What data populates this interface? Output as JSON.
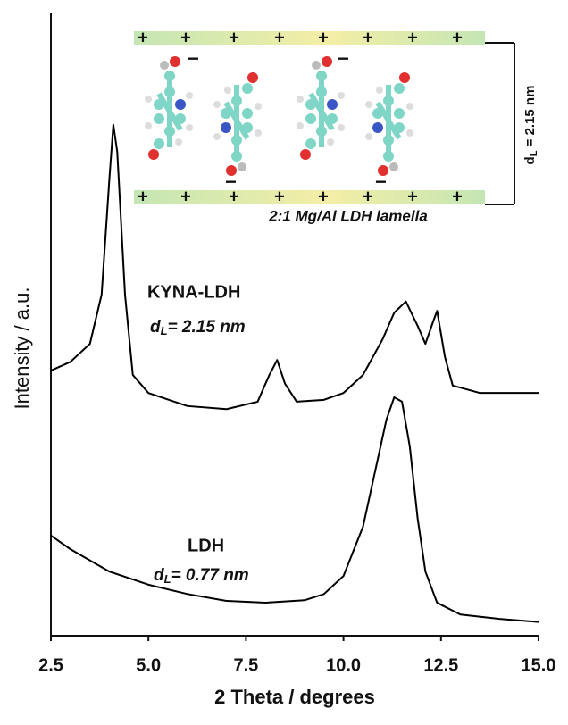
{
  "chart_data": {
    "type": "line",
    "xlabel": "2 Theta / degrees",
    "ylabel": "Intensity / a.u.",
    "xlim": [
      2.5,
      15.0
    ],
    "ylim": [
      0,
      100
    ],
    "xticks": [
      2.5,
      {
        "value": 5,
        "label": "5.0"
      },
      7.5,
      {
        "value": 10,
        "label": "10.0"
      },
      12.5,
      {
        "value": 15,
        "label": "15.0"
      }
    ],
    "series": [
      {
        "name": "KYNA-LDH",
        "color": "#000000",
        "x": [
          2.5,
          3.0,
          3.5,
          3.8,
          4.0,
          4.1,
          4.2,
          4.4,
          4.6,
          5.0,
          6.0,
          7.0,
          7.8,
          8.1,
          8.3,
          8.5,
          8.8,
          9.5,
          10.0,
          10.5,
          11.0,
          11.3,
          11.6,
          11.9,
          12.1,
          12.3,
          12.4,
          12.6,
          12.8,
          13.5,
          14.5,
          15.0
        ],
        "values": [
          42.6,
          44.0,
          46.9,
          54.8,
          73.5,
          82.1,
          77.8,
          54.8,
          41.9,
          39.0,
          36.9,
          36.4,
          37.6,
          41.9,
          44.3,
          40.5,
          37.6,
          37.9,
          39.0,
          41.9,
          47.6,
          51.9,
          53.7,
          49.8,
          46.9,
          50.5,
          52.2,
          44.8,
          40.2,
          39.0,
          39.0,
          39.0
        ]
      },
      {
        "name": "LDH",
        "color": "#000000",
        "x": [
          2.5,
          3.0,
          4.0,
          5.0,
          6.0,
          7.0,
          8.0,
          9.0,
          9.5,
          10.0,
          10.5,
          10.8,
          11.1,
          11.3,
          11.5,
          11.7,
          11.9,
          12.1,
          12.4,
          13.0,
          14.0,
          15.0
        ],
        "values": [
          16.1,
          13.9,
          10.3,
          8.2,
          6.7,
          5.6,
          5.3,
          5.7,
          6.7,
          9.6,
          17.5,
          26.1,
          34.7,
          38.3,
          37.6,
          30.4,
          18.9,
          10.3,
          5.3,
          3.4,
          2.7,
          2.2
        ]
      }
    ],
    "annotations": [
      {
        "symbol": "d",
        "subscript": "L",
        "text": "= 2.15 nm"
      },
      {
        "symbol": "d",
        "subscript": "L",
        "text": "= 0.77 nm"
      }
    ],
    "inset": {
      "plus_sign": "+",
      "minus_sign": "−",
      "caption": "2:1 Mg/Al LDH lamella",
      "spacing_symbol": "d",
      "spacing_subscript": "L",
      "spacing_text": " = 2.15 nm"
    }
  }
}
